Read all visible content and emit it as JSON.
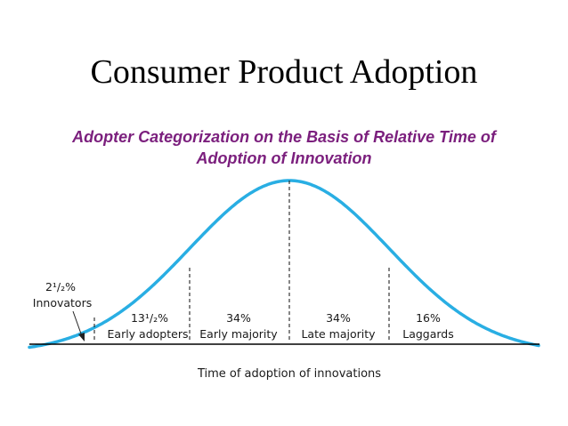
{
  "title": "Consumer Product Adoption",
  "subtitle": {
    "line1": "Adopter Categorization on the Basis of Relative Time of",
    "line2": "Adoption of Innovation"
  },
  "colors": {
    "title": "#000000",
    "subtitle": "#7b1f7d",
    "curve": "#29aee3",
    "axis": "#000000"
  },
  "categories": [
    {
      "percent": "2¹/₂%",
      "name": "Innovators"
    },
    {
      "percent": "13¹/₂%",
      "name": "Early adopters"
    },
    {
      "percent": "34%",
      "name": "Early majority"
    },
    {
      "percent": "34%",
      "name": "Late majority"
    },
    {
      "percent": "16%",
      "name": "Laggards"
    }
  ],
  "axis": {
    "label": "Time of adoption of innovations"
  }
}
